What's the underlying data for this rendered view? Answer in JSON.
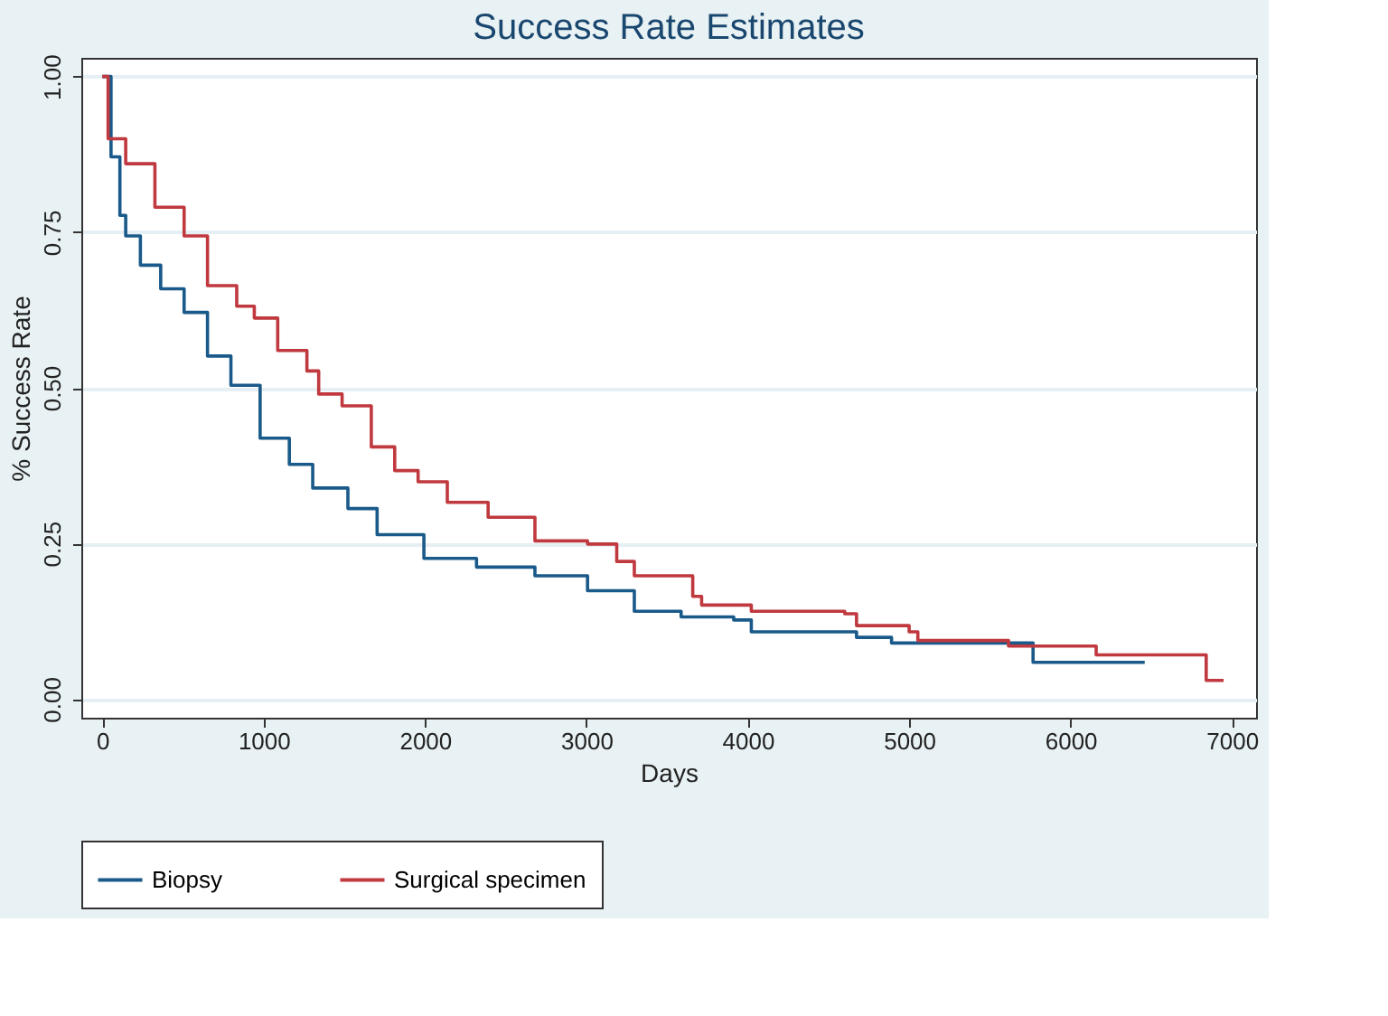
{
  "chart_data": {
    "type": "step",
    "title": "Success Rate Estimates",
    "xlabel": "Days",
    "ylabel": "% Success Rate",
    "xlim": [
      -130,
      7150
    ],
    "ylim": [
      -0.03,
      1.03
    ],
    "xticks": [
      0,
      1000,
      2000,
      3000,
      4000,
      5000,
      6000,
      7000
    ],
    "yticks": [
      {
        "value": 0,
        "label": "0.00"
      },
      {
        "value": 0.25,
        "label": "0.25"
      },
      {
        "value": 0.5,
        "label": "0.50"
      },
      {
        "value": 0.75,
        "label": "0.75"
      },
      {
        "value": 1,
        "label": "1.00"
      }
    ],
    "grid": "y",
    "legend": "bottom",
    "marker": "none",
    "line_style": "solid",
    "series": [
      {
        "name": "Biopsy",
        "color": "#1a5a8a",
        "x": [
          0,
          54,
          109,
          145,
          236,
          362,
          507,
          652,
          797,
          978,
          1159,
          1304,
          1522,
          1703,
          1993,
          2319,
          2681,
          3007,
          3297,
          3587,
          3913,
          4022,
          4674,
          4891,
          5768,
          6460
        ],
        "values": [
          1.0,
          0.871,
          0.777,
          0.744,
          0.697,
          0.659,
          0.621,
          0.551,
          0.504,
          0.419,
          0.377,
          0.339,
          0.306,
          0.264,
          0.226,
          0.212,
          0.198,
          0.174,
          0.141,
          0.132,
          0.127,
          0.108,
          0.099,
          0.09,
          0.059,
          0.059
        ]
      },
      {
        "name": "Surgical specimen",
        "color": "#c0393f",
        "x": [
          0,
          36,
          145,
          326,
          507,
          652,
          833,
          942,
          1087,
          1268,
          1341,
          1486,
          1667,
          1812,
          1957,
          2138,
          2391,
          2681,
          3007,
          3188,
          3297,
          3659,
          3714,
          4022,
          4601,
          4674,
          5000,
          5054,
          5616,
          6159,
          6841,
          6949
        ],
        "values": [
          1.0,
          0.9,
          0.86,
          0.79,
          0.744,
          0.664,
          0.631,
          0.612,
          0.56,
          0.527,
          0.49,
          0.471,
          0.405,
          0.367,
          0.349,
          0.316,
          0.292,
          0.254,
          0.249,
          0.221,
          0.198,
          0.165,
          0.151,
          0.141,
          0.137,
          0.118,
          0.108,
          0.094,
          0.085,
          0.071,
          0.03,
          0.03
        ]
      }
    ]
  }
}
